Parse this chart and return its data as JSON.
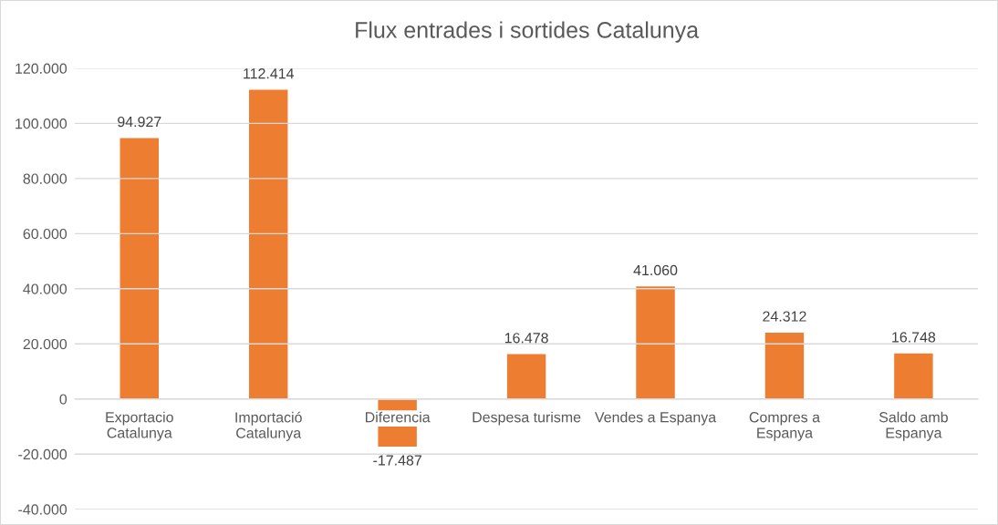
{
  "chart_data": {
    "type": "bar",
    "title": "Flux entrades i sortides Catalunya",
    "categories": [
      "Exportacio\nCatalunya",
      "Importació\nCatalunya",
      "Diferencia",
      "Despesa turisme",
      "Vendes a Espanya",
      "Compres a\nEspanya",
      "Saldo amb\nEspanya"
    ],
    "values": [
      94927,
      112414,
      -17487,
      16478,
      41060,
      24312,
      16748
    ],
    "value_labels": [
      "94.927",
      "112.414",
      "-17.487",
      "16.478",
      "41.060",
      "24.312",
      "16.748"
    ],
    "color": "#ed7d31",
    "ylim": [
      -40000,
      120000
    ],
    "yticks": [
      {
        "value": -40000,
        "label": "-40.000"
      },
      {
        "value": -20000,
        "label": "-20.000"
      },
      {
        "value": 0,
        "label": "0"
      },
      {
        "value": 20000,
        "label": "20.000"
      },
      {
        "value": 40000,
        "label": "40.000"
      },
      {
        "value": 60000,
        "label": "60.000"
      },
      {
        "value": 80000,
        "label": "80.000"
      },
      {
        "value": 100000,
        "label": "100.000"
      },
      {
        "value": 120000,
        "label": "120.000"
      }
    ],
    "grid": "y"
  }
}
